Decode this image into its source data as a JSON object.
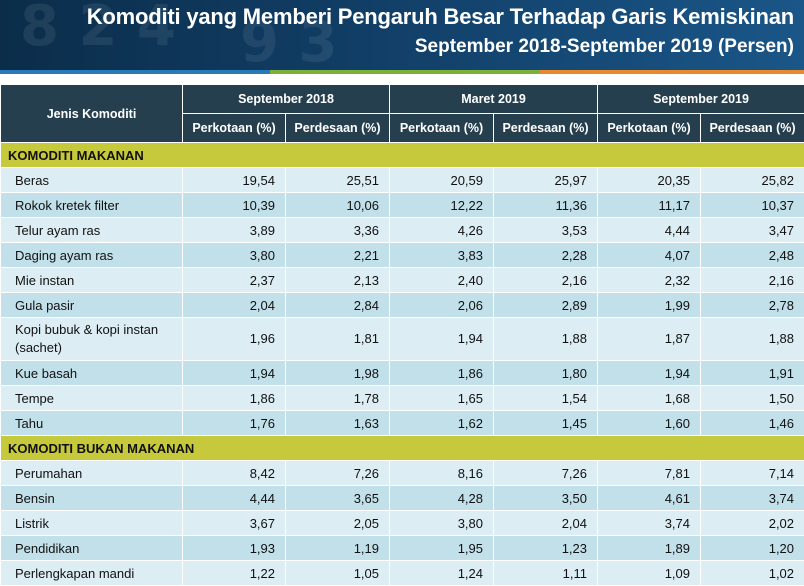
{
  "title": {
    "line1": "Komoditi yang Memberi Pengaruh Besar Terhadap Garis Kemiskinan",
    "line2": "September 2018-September 2019 (Persen)"
  },
  "colors": {
    "header": "#263f4e",
    "section": "#c7c93c",
    "row_light": "#dcedf3",
    "row_dark": "#c2e0ea"
  },
  "table": {
    "first_col_header": "Jenis Komoditi",
    "periods": [
      "September 2018",
      "Maret 2019",
      "September 2019"
    ],
    "sub_headers": [
      "Perkotaan (%)",
      "Perdesaan (%)",
      "Perkotaan (%)",
      "Perdesaan (%)",
      "Perkotaan (%)",
      "Perdesaan (%)"
    ],
    "sections": [
      {
        "label": "KOMODITI MAKANAN",
        "rows": [
          {
            "name": "Beras",
            "values": [
              "19,54",
              "25,51",
              "20,59",
              "25,97",
              "20,35",
              "25,82"
            ]
          },
          {
            "name": "Rokok kretek filter",
            "values": [
              "10,39",
              "10,06",
              "12,22",
              "11,36",
              "11,17",
              "10,37"
            ]
          },
          {
            "name": "Telur ayam ras",
            "values": [
              "3,89",
              "3,36",
              "4,26",
              "3,53",
              "4,44",
              "3,47"
            ]
          },
          {
            "name": "Daging ayam ras",
            "values": [
              "3,80",
              "2,21",
              "3,83",
              "2,28",
              "4,07",
              "2,48"
            ]
          },
          {
            "name": "Mie instan",
            "values": [
              "2,37",
              "2,13",
              "2,40",
              "2,16",
              "2,32",
              "2,16"
            ]
          },
          {
            "name": "Gula pasir",
            "values": [
              "2,04",
              "2,84",
              "2,06",
              "2,89",
              "1,99",
              "2,78"
            ]
          },
          {
            "name": "Kopi bubuk & kopi instan (sachet)",
            "values": [
              "1,96",
              "1,81",
              "1,94",
              "1,88",
              "1,87",
              "1,88"
            ]
          },
          {
            "name": "Kue basah",
            "values": [
              "1,94",
              "1,98",
              "1,86",
              "1,80",
              "1,94",
              "1,91"
            ]
          },
          {
            "name": "Tempe",
            "values": [
              "1,86",
              "1,78",
              "1,65",
              "1,54",
              "1,68",
              "1,50"
            ]
          },
          {
            "name": "Tahu",
            "values": [
              "1,76",
              "1,63",
              "1,62",
              "1,45",
              "1,60",
              "1,46"
            ]
          }
        ]
      },
      {
        "label": "KOMODITI BUKAN MAKANAN",
        "rows": [
          {
            "name": "Perumahan",
            "values": [
              "8,42",
              "7,26",
              "8,16",
              "7,26",
              "7,81",
              "7,14"
            ]
          },
          {
            "name": "Bensin",
            "values": [
              "4,44",
              "3,65",
              "4,28",
              "3,50",
              "4,61",
              "3,74"
            ]
          },
          {
            "name": "Listrik",
            "values": [
              "3,67",
              "2,05",
              "3,80",
              "2,04",
              "3,74",
              "2,02"
            ]
          },
          {
            "name": "Pendidikan",
            "values": [
              "1,93",
              "1,19",
              "1,95",
              "1,23",
              "1,89",
              "1,20"
            ]
          },
          {
            "name": "Perlengkapan mandi",
            "values": [
              "1,22",
              "1,05",
              "1,24",
              "1,11",
              "1,09",
              "1,02"
            ]
          }
        ]
      }
    ]
  }
}
